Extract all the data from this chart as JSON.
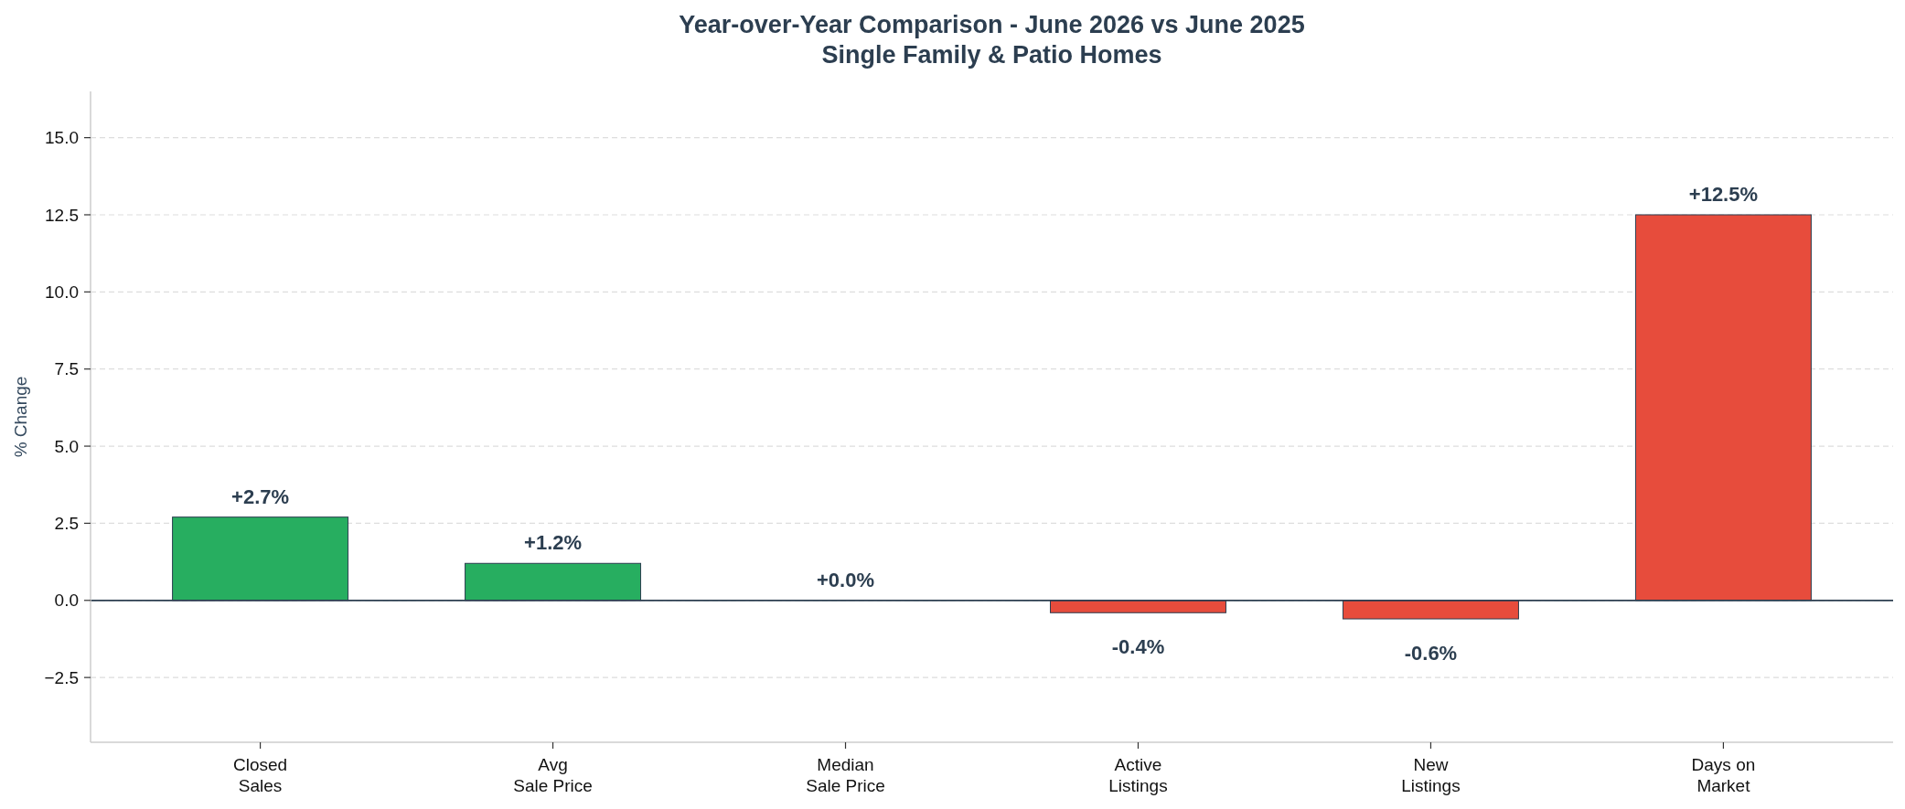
{
  "chart_data": {
    "type": "bar",
    "title": "Year-over-Year Comparison - June 2026 vs June 2025",
    "subtitle": "Single Family & Patio Homes",
    "ylabel": "% Change",
    "categories": [
      "Closed\nSales",
      "Avg\nSale Price",
      "Median\nSale Price",
      "Active\nListings",
      "New\nListings",
      "Days on\nMarket"
    ],
    "values": [
      2.7,
      1.2,
      0.0,
      -0.4,
      -0.6,
      12.5
    ],
    "colors": [
      "#27ae60",
      "#27ae60",
      "#27ae60",
      "#e74c3c",
      "#e74c3c",
      "#e74c3c"
    ],
    "value_labels": [
      "+2.7%",
      "+1.2%",
      "+0.0%",
      "-0.4%",
      "-0.6%",
      "+12.5%"
    ],
    "ylim": [
      -4.6,
      16.5
    ],
    "yticks": [
      {
        "value": -2.5,
        "label": "−2.5"
      },
      {
        "value": 0,
        "label": "0.0"
      },
      2.5,
      {
        "value": 5,
        "label": "5.0"
      },
      7.5,
      {
        "value": 10,
        "label": "10.0"
      },
      12.5,
      {
        "value": 15,
        "label": "15.0"
      }
    ],
    "ref_lines": [
      {
        "axis": "y",
        "value": 0,
        "color": "#2c3e50"
      }
    ],
    "grid": "y"
  }
}
